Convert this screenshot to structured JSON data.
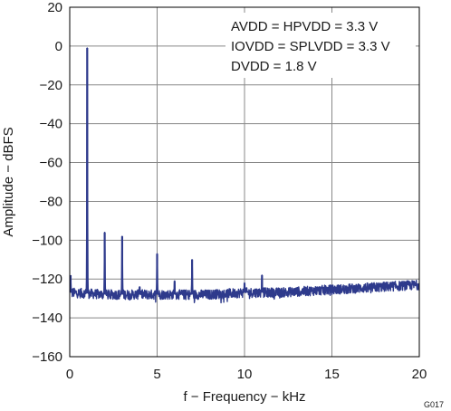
{
  "chart_data": {
    "type": "line",
    "title": "",
    "xlabel": "f − Frequency − kHz",
    "ylabel": "Amplitude − dBFS",
    "xlim": [
      0,
      20
    ],
    "ylim": [
      -160,
      20
    ],
    "x_ticks": [
      "0",
      "5",
      "10",
      "15",
      "20"
    ],
    "y_ticks": [
      "20",
      "0",
      "−20",
      "−40",
      "−60",
      "−80",
      "−100",
      "−120",
      "−140",
      "−160"
    ],
    "grid": true,
    "line_color": "#2e3a8c",
    "noise_floor": {
      "x": [
        0,
        2,
        4,
        6,
        8,
        10,
        12,
        14,
        16,
        18,
        20
      ],
      "y": [
        -127,
        -128,
        -128,
        -128,
        -128,
        -127,
        -127,
        -126,
        -125,
        -124,
        -123
      ]
    },
    "peaks": [
      {
        "x": 0.05,
        "y": -118
      },
      {
        "x": 1,
        "y": -1
      },
      {
        "x": 2,
        "y": -96
      },
      {
        "x": 3,
        "y": -98
      },
      {
        "x": 4,
        "y": -124
      },
      {
        "x": 5,
        "y": -107
      },
      {
        "x": 6,
        "y": -121
      },
      {
        "x": 7,
        "y": -110
      },
      {
        "x": 10,
        "y": -122
      },
      {
        "x": 11,
        "y": -118
      }
    ],
    "annotations": [
      "AVDD = HPVDD = 3.3 V",
      "IOVDD = SPLVDD = 3.3 V",
      "DVDD = 1.8 V"
    ]
  },
  "figure_id": "G017"
}
